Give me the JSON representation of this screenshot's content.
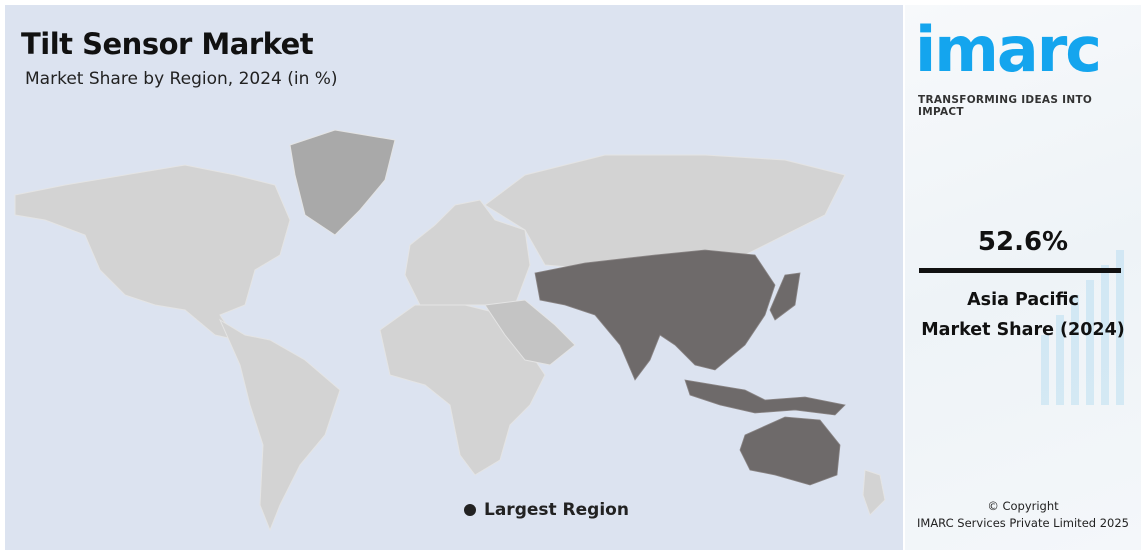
{
  "header": {
    "title": "Tilt Sensor Market",
    "subtitle": "Market Share by Region, 2024 (in %)"
  },
  "map": {
    "highlighted_region": "Asia Pacific",
    "colors": {
      "background": "#dce3f0",
      "highlight": "#6e6a6a",
      "other": "#d3d3d3",
      "greenland": "#a9a9a9",
      "middle": "#c4c4c4"
    }
  },
  "legend": {
    "label": "Largest Region",
    "color": "#222222"
  },
  "sidebar": {
    "logo_text": "imarc",
    "tagline": "TRANSFORMING IDEAS INTO IMPACT",
    "share_value": "52.6%",
    "region_label": "Asia Pacific",
    "share_label": "Market Share (2024)",
    "copyright": "© Copyright",
    "company": "IMARC Services Private Limited 2025",
    "brand_color": "#14a5ee"
  }
}
